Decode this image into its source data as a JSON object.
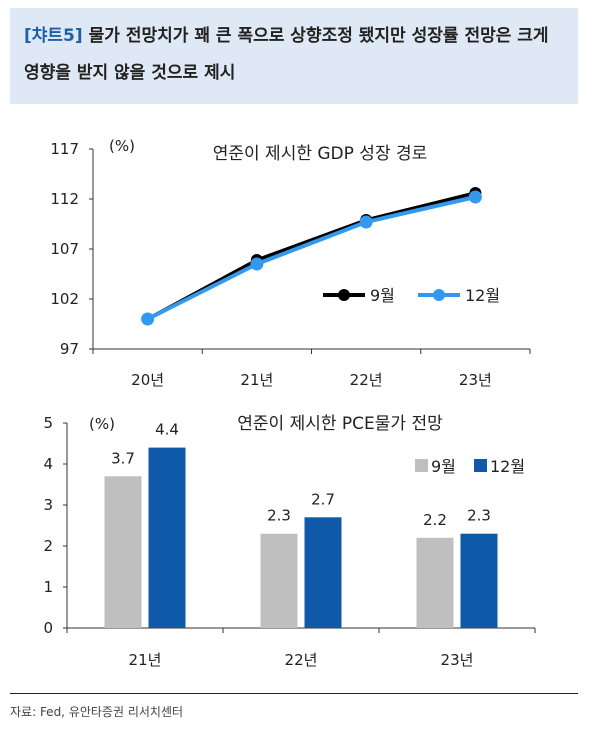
{
  "header": {
    "tag": "[챠트5]",
    "title": "물가 전망치가 꽤 큰 폭으로 상향조정 됐지만 성장률 전망은 크게 영향을 받지 않을 것으로 제시"
  },
  "chart_data": [
    {
      "type": "line",
      "title": "연준이 제시한 GDP 성장 경로",
      "unit_label": "(%)",
      "categories": [
        "20년",
        "21년",
        "22년",
        "23년"
      ],
      "ylim": [
        97,
        117
      ],
      "yticks": [
        97,
        102,
        107,
        112,
        117
      ],
      "series": [
        {
          "name": "9월",
          "values": [
            100,
            105.9,
            109.9,
            112.6
          ],
          "color": "#000000"
        },
        {
          "name": "12월",
          "values": [
            100,
            105.5,
            109.7,
            112.2
          ],
          "color": "#3399ee"
        }
      ],
      "legend_position": "right"
    },
    {
      "type": "bar",
      "title": "연준이 제시한 PCE물가 전망",
      "unit_label": "(%)",
      "categories": [
        "21년",
        "22년",
        "23년"
      ],
      "ylim": [
        0,
        5
      ],
      "yticks": [
        0,
        1,
        2,
        3,
        4,
        5
      ],
      "series": [
        {
          "name": "9월",
          "values": [
            3.7,
            2.3,
            2.2
          ],
          "color": "#bfbfbf"
        },
        {
          "name": "12월",
          "values": [
            4.4,
            2.7,
            2.3
          ],
          "color": "#0f5aa8"
        }
      ],
      "legend_position": "top-right"
    }
  ],
  "footer": {
    "source": "자료: Fed, 유안타증권 리서치센터"
  }
}
